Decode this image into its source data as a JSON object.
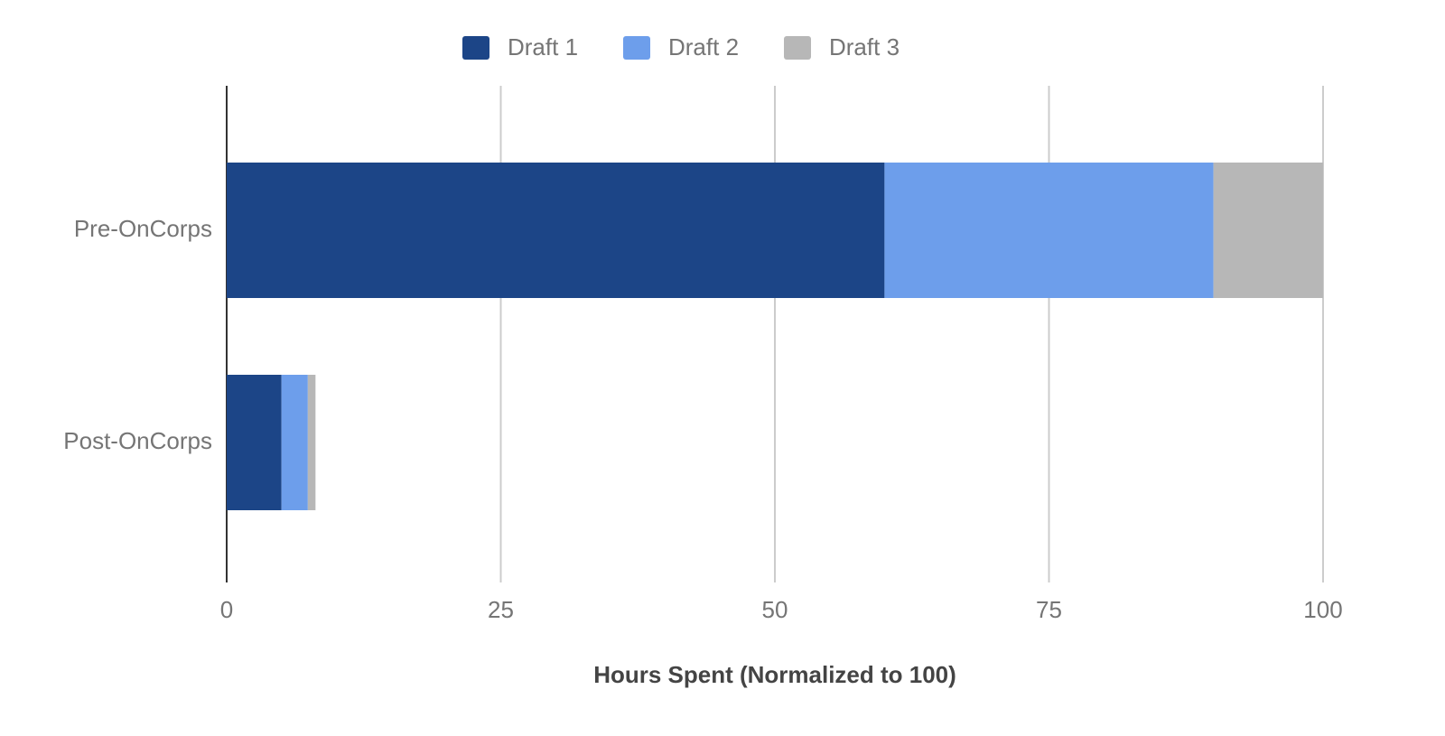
{
  "chart_data": {
    "type": "bar",
    "orientation": "horizontal",
    "stacked": true,
    "x_label": "Hours Spent (Normalized to 100)",
    "categories": [
      "Pre-OnCorps",
      "Post-OnCorps"
    ],
    "series": [
      {
        "name": "Draft 1",
        "color": "#1c4587",
        "values": [
          60,
          5
        ]
      },
      {
        "name": "Draft 2",
        "color": "#6d9eeb",
        "values": [
          30,
          2.4
        ]
      },
      {
        "name": "Draft 3",
        "color": "#b7b7b7",
        "values": [
          10,
          0.7
        ]
      }
    ],
    "xlim": [
      0,
      100
    ],
    "xticks": [
      0,
      25,
      50,
      75,
      100
    ],
    "grid": true,
    "legend": "top"
  }
}
